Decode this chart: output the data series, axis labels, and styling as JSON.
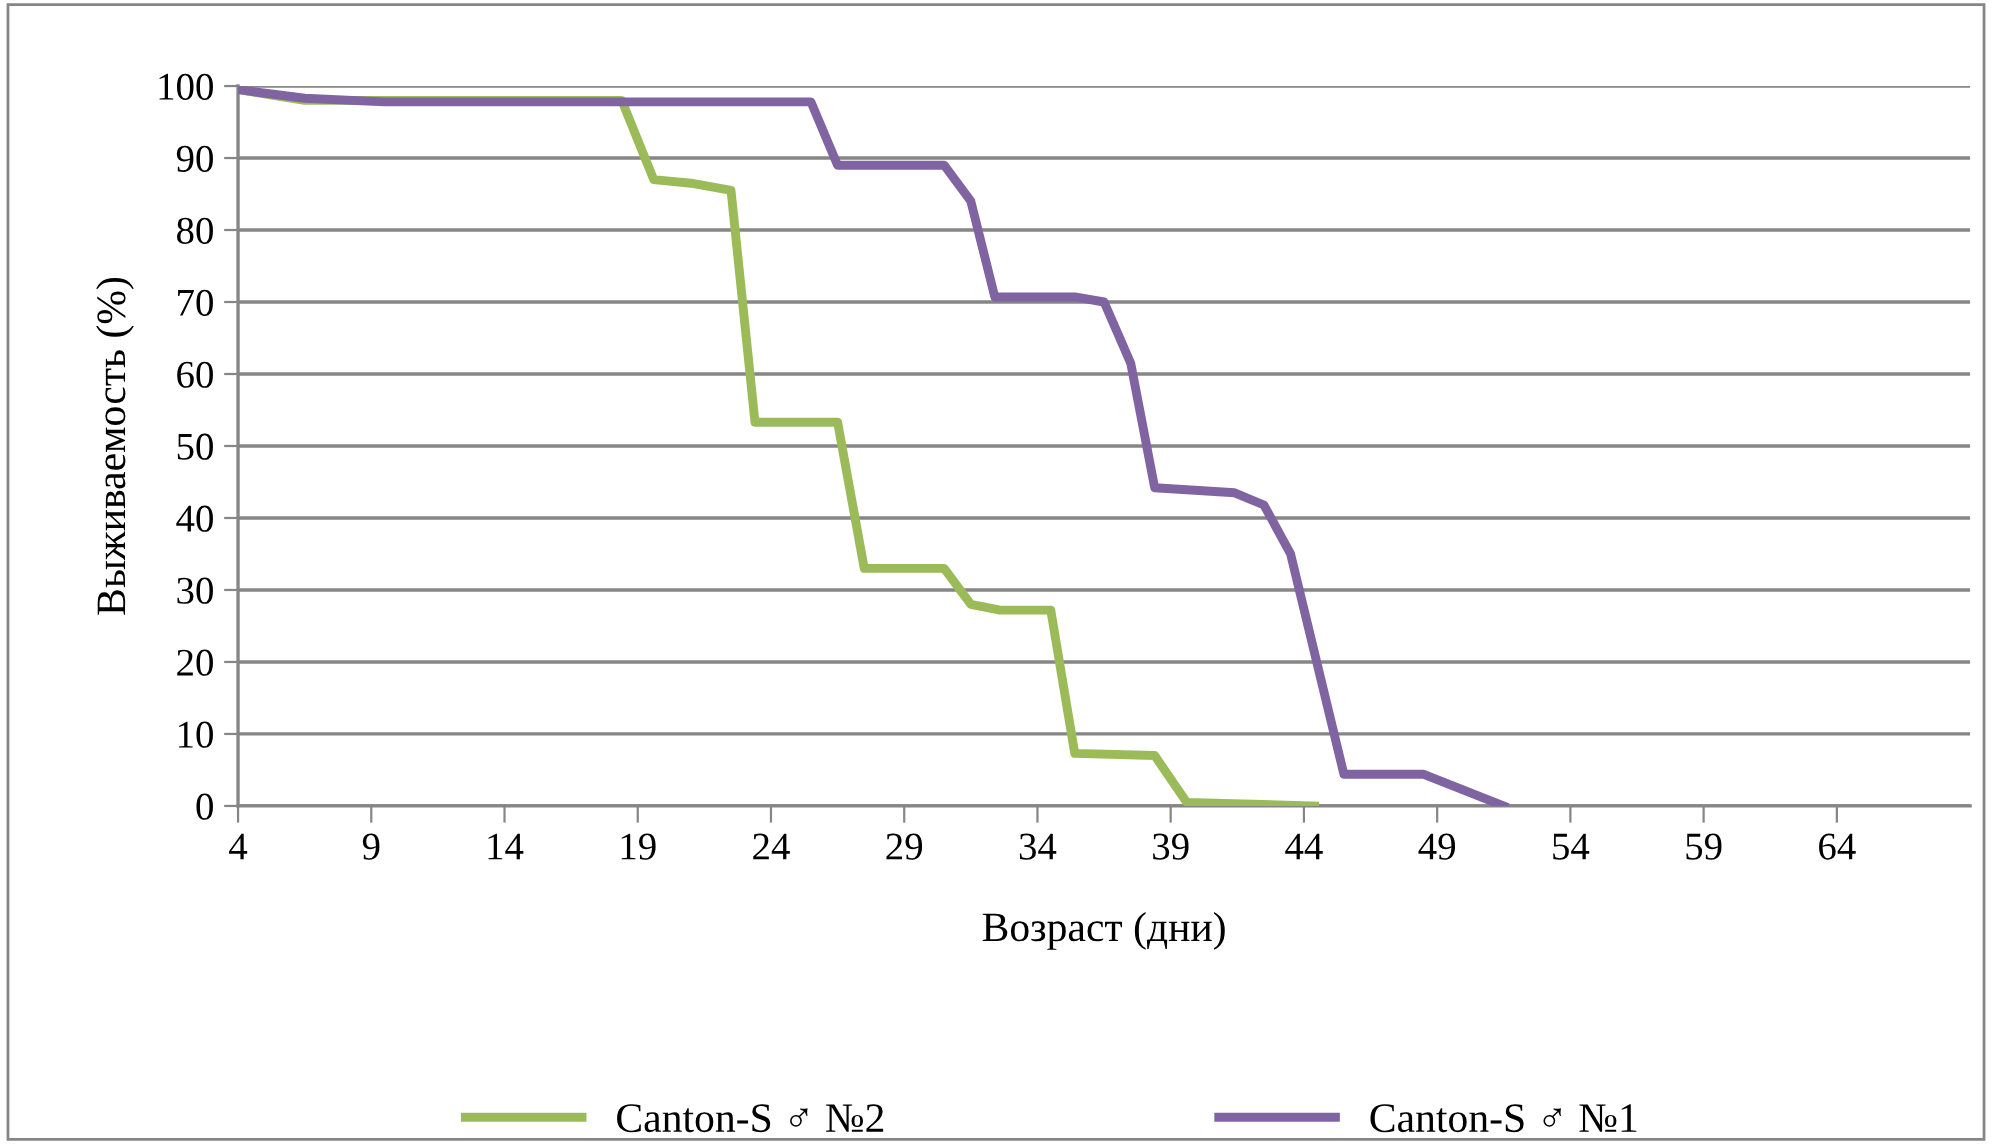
{
  "chart_data": {
    "type": "line",
    "xlabel": "Возраст (дни)",
    "ylabel": "Выживаемость (%)",
    "xlim": [
      4,
      69
    ],
    "xticks": [
      4,
      9,
      14,
      19,
      24,
      29,
      34,
      39,
      44,
      49,
      54,
      59,
      64
    ],
    "ylim": [
      0,
      100
    ],
    "yticks": [
      0,
      10,
      20,
      30,
      40,
      50,
      60,
      70,
      80,
      90,
      100
    ],
    "grid": "y",
    "legend": "bottom",
    "marker": "none",
    "line_style": "solid",
    "series": [
      {
        "name": "Canton-S ♂ №2",
        "color": "#9bbb59",
        "x": [
          4,
          6.5,
          18.4,
          19.6,
          21,
          22.5,
          23.4,
          26.5,
          27.5,
          30.5,
          31.5,
          32.6,
          34.5,
          35.4,
          38.4,
          39.6,
          44.4
        ],
        "values": [
          99.5,
          98,
          98,
          87,
          86.5,
          85.5,
          53.3,
          53.3,
          33,
          33,
          28,
          27.2,
          27.2,
          7.3,
          7,
          0.5,
          0
        ]
      },
      {
        "name": "Canton-S ♂ №1",
        "color": "#8064a2",
        "x": [
          4,
          6.5,
          9.5,
          25.5,
          26.5,
          30.5,
          31.5,
          32.4,
          35.4,
          36.5,
          37.5,
          38.4,
          41.4,
          42.5,
          43.5,
          45.5,
          48.5,
          51.5
        ],
        "values": [
          99.5,
          98.3,
          97.8,
          97.8,
          89,
          89,
          84,
          70.7,
          70.7,
          70,
          61.5,
          44.2,
          43.5,
          41.8,
          35,
          4.4,
          4.4,
          0
        ]
      }
    ]
  }
}
